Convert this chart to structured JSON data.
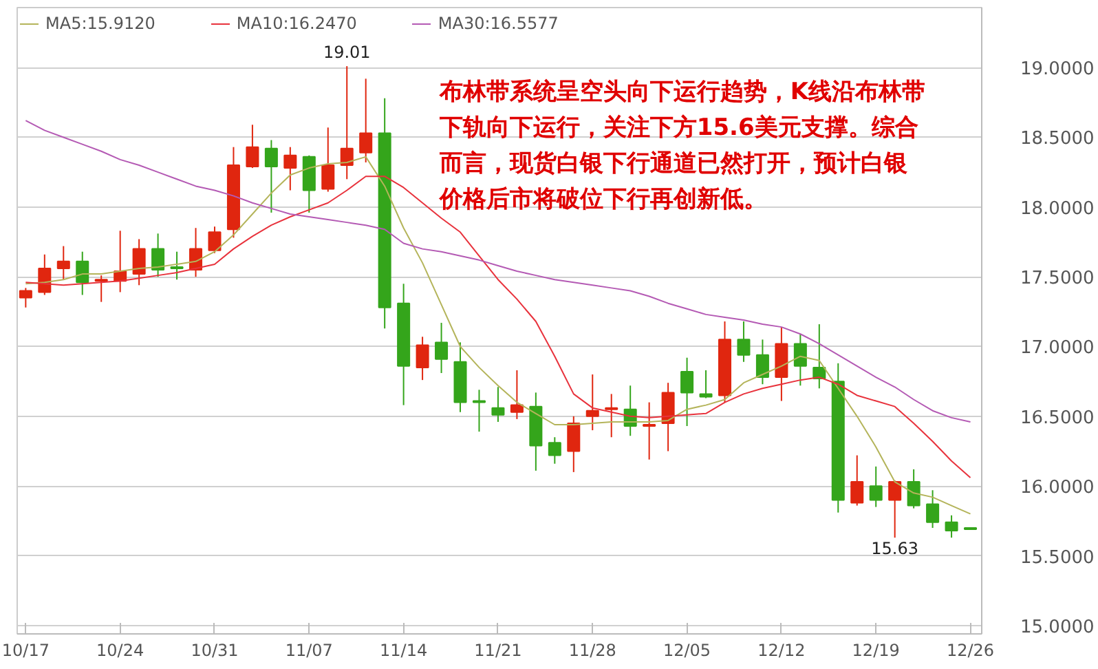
{
  "chart_data": {
    "type": "candlestick",
    "categories": [
      "10/17",
      null,
      null,
      null,
      null,
      "10/24",
      null,
      null,
      null,
      null,
      "10/31",
      null,
      null,
      null,
      null,
      "11/07",
      null,
      null,
      null,
      null,
      "11/14",
      null,
      null,
      null,
      null,
      "11/21",
      null,
      null,
      null,
      null,
      "11/28",
      null,
      null,
      null,
      null,
      "12/05",
      null,
      null,
      null,
      null,
      "12/12",
      null,
      null,
      null,
      null,
      "12/19",
      null,
      null,
      null,
      null,
      "12/26"
    ],
    "ohlc": [
      [
        17.35,
        17.42,
        17.28,
        17.4
      ],
      [
        17.39,
        17.66,
        17.37,
        17.56
      ],
      [
        17.56,
        17.72,
        17.48,
        17.61
      ],
      [
        17.61,
        17.68,
        17.37,
        17.46
      ],
      [
        17.47,
        17.51,
        17.32,
        17.48
      ],
      [
        17.47,
        17.83,
        17.39,
        17.54
      ],
      [
        17.52,
        17.77,
        17.44,
        17.7
      ],
      [
        17.7,
        17.81,
        17.5,
        17.55
      ],
      [
        17.57,
        17.68,
        17.48,
        17.56
      ],
      [
        17.55,
        17.85,
        17.5,
        17.7
      ],
      [
        17.69,
        17.86,
        17.67,
        17.82
      ],
      [
        17.84,
        18.43,
        17.78,
        18.3
      ],
      [
        18.29,
        18.59,
        18.28,
        18.43
      ],
      [
        18.42,
        18.48,
        17.96,
        18.29
      ],
      [
        18.28,
        18.43,
        18.12,
        18.37
      ],
      [
        18.36,
        18.37,
        17.96,
        18.12
      ],
      [
        18.13,
        18.57,
        18.11,
        18.3
      ],
      [
        18.3,
        19.01,
        18.2,
        18.42
      ],
      [
        18.39,
        18.92,
        18.32,
        18.53
      ],
      [
        18.53,
        18.78,
        17.13,
        17.28
      ],
      [
        17.31,
        17.45,
        16.58,
        16.86
      ],
      [
        16.85,
        17.07,
        16.76,
        17.01
      ],
      [
        17.03,
        17.17,
        16.81,
        16.91
      ],
      [
        16.89,
        17.03,
        16.53,
        16.6
      ],
      [
        16.61,
        16.69,
        16.39,
        16.6
      ],
      [
        16.56,
        16.71,
        16.46,
        16.51
      ],
      [
        16.53,
        16.83,
        16.48,
        16.58
      ],
      [
        16.57,
        16.67,
        16.11,
        16.29
      ],
      [
        16.31,
        16.35,
        16.16,
        16.22
      ],
      [
        16.25,
        16.5,
        16.1,
        16.45
      ],
      [
        16.5,
        16.8,
        16.4,
        16.54
      ],
      [
        16.55,
        16.66,
        16.35,
        16.56
      ],
      [
        16.55,
        16.72,
        16.36,
        16.43
      ],
      [
        16.43,
        16.6,
        16.19,
        16.44
      ],
      [
        16.45,
        16.74,
        16.25,
        16.67
      ],
      [
        16.82,
        16.92,
        16.43,
        16.67
      ],
      [
        16.66,
        16.83,
        16.63,
        16.64
      ],
      [
        16.65,
        17.18,
        16.6,
        17.05
      ],
      [
        17.05,
        17.18,
        16.89,
        16.94
      ],
      [
        16.94,
        17.05,
        16.73,
        16.78
      ],
      [
        16.78,
        17.14,
        16.61,
        17.02
      ],
      [
        17.02,
        17.09,
        16.72,
        16.86
      ],
      [
        16.85,
        17.16,
        16.7,
        16.77
      ],
      [
        16.75,
        16.88,
        15.81,
        15.9
      ],
      [
        15.88,
        16.22,
        15.86,
        16.03
      ],
      [
        16.0,
        16.14,
        15.85,
        15.9
      ],
      [
        15.9,
        16.04,
        15.63,
        16.03
      ],
      [
        16.03,
        16.12,
        15.84,
        15.86
      ],
      [
        15.87,
        15.97,
        15.7,
        15.74
      ],
      [
        15.74,
        15.79,
        15.63,
        15.68
      ],
      [
        15.7,
        15.7,
        15.69,
        15.69
      ]
    ],
    "colors": [
      "#e0260f",
      "#e0260f",
      "#e0260f",
      "#34a51b",
      "#e0260f",
      "#e0260f",
      "#e0260f",
      "#34a51b",
      "#34a51b",
      "#e0260f",
      "#e0260f",
      "#e0260f",
      "#e0260f",
      "#34a51b",
      "#e0260f",
      "#34a51b",
      "#e0260f",
      "#e0260f",
      "#e0260f",
      "#34a51b",
      "#34a51b",
      "#e0260f",
      "#34a51b",
      "#34a51b",
      "#34a51b",
      "#34a51b",
      "#e0260f",
      "#34a51b",
      "#34a51b",
      "#e0260f",
      "#e0260f",
      "#e0260f",
      "#34a51b",
      "#e0260f",
      "#e0260f",
      "#34a51b",
      "#34a51b",
      "#e0260f",
      "#34a51b",
      "#34a51b",
      "#e0260f",
      "#34a51b",
      "#34a51b",
      "#34a51b",
      "#e0260f",
      "#34a51b",
      "#e0260f",
      "#34a51b",
      "#34a51b",
      "#34a51b",
      "#34a51b"
    ],
    "series": [
      {
        "name": "MA5:15.9120",
        "type": "line",
        "color": "#b4b45a",
        "values": [
          17.45,
          17.46,
          17.48,
          17.52,
          17.52,
          17.54,
          17.56,
          17.57,
          17.59,
          17.61,
          17.68,
          17.8,
          17.95,
          18.1,
          18.23,
          18.28,
          18.31,
          18.32,
          18.36,
          18.15,
          17.85,
          17.6,
          17.3,
          17.0,
          16.85,
          16.72,
          16.6,
          16.52,
          16.44,
          16.44,
          16.45,
          16.46,
          16.46,
          16.46,
          16.47,
          16.55,
          16.58,
          16.62,
          16.74,
          16.8,
          16.86,
          16.93,
          16.9,
          16.7,
          16.5,
          16.28,
          16.03,
          15.95,
          15.92,
          15.86,
          15.8
        ]
      },
      {
        "name": "MA10:16.2470",
        "type": "line",
        "color": "#e8323c",
        "values": [
          17.46,
          17.45,
          17.44,
          17.45,
          17.46,
          17.47,
          17.49,
          17.51,
          17.53,
          17.56,
          17.59,
          17.7,
          17.79,
          17.87,
          17.93,
          17.98,
          18.03,
          18.12,
          18.22,
          18.22,
          18.14,
          18.03,
          17.92,
          17.82,
          17.65,
          17.48,
          17.34,
          17.18,
          16.93,
          16.66,
          16.56,
          16.53,
          16.5,
          16.49,
          16.5,
          16.51,
          16.52,
          16.6,
          16.66,
          16.7,
          16.73,
          16.76,
          16.78,
          16.73,
          16.65,
          16.61,
          16.57,
          16.45,
          16.32,
          16.18,
          16.06
        ]
      },
      {
        "name": "MA30:16.5577",
        "type": "line",
        "color": "#b45ab4",
        "values": [
          18.62,
          18.55,
          18.5,
          18.45,
          18.4,
          18.34,
          18.3,
          18.25,
          18.2,
          18.15,
          18.12,
          18.08,
          18.03,
          17.99,
          17.95,
          17.93,
          17.91,
          17.89,
          17.87,
          17.84,
          17.74,
          17.7,
          17.68,
          17.65,
          17.62,
          17.58,
          17.54,
          17.51,
          17.48,
          17.46,
          17.44,
          17.42,
          17.4,
          17.36,
          17.31,
          17.27,
          17.23,
          17.21,
          17.19,
          17.16,
          17.14,
          17.09,
          17.02,
          16.94,
          16.86,
          16.78,
          16.71,
          16.62,
          16.54,
          16.49,
          16.46
        ]
      }
    ],
    "ylim": [
      14.94,
      19.43
    ],
    "yticks": [
      {
        "value": 15,
        "label": "15.0000"
      },
      {
        "value": 15.5,
        "label": "15.5000"
      },
      {
        "value": 16,
        "label": "16.0000"
      },
      {
        "value": 16.5,
        "label": "16.5000"
      },
      {
        "value": 17,
        "label": "17.0000"
      },
      {
        "value": 17.5,
        "label": "17.5000"
      },
      {
        "value": 18,
        "label": "18.0000"
      },
      {
        "value": 18.5,
        "label": "18.5000"
      },
      {
        "value": 19,
        "label": "19.0000"
      }
    ],
    "grid": "y",
    "legend": "top left",
    "annotations": [
      {
        "text": "19.01",
        "y": 19.01
      },
      {
        "text": "15.63",
        "y": 15.63
      },
      "布林带系统呈空头向下运行趋势，K线沿布林带下轨向下运行，关注下方15.6美元支撑。综合而言，现货白银下行通道已然打开，预计白银价格后市将破位下行再创新低。"
    ]
  }
}
